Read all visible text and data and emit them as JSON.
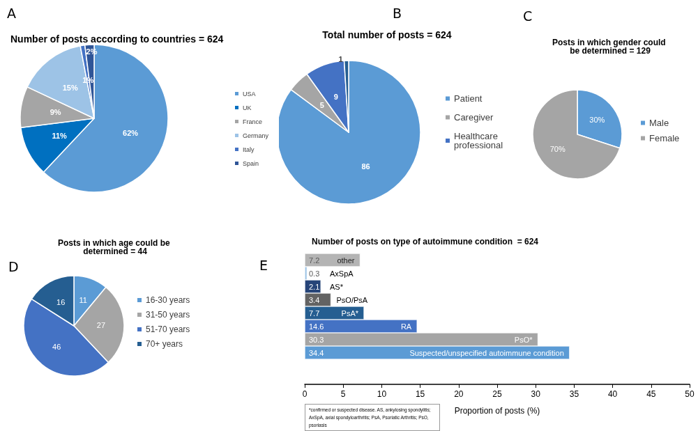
{
  "chart_data": [
    {
      "type": "pie",
      "title": "Number of posts according to countries = 624",
      "annotations": [
        "A"
      ],
      "categories": [
        "USA",
        "UK",
        "France",
        "Germany",
        "Italy",
        "Spain"
      ],
      "values": [
        62,
        11,
        9,
        15,
        1,
        2
      ],
      "value_labels": [
        "62%",
        "11%",
        "9%",
        "15%",
        "1%",
        "2%"
      ],
      "colors": [
        "#5b9bd5",
        "#0070c0",
        "#a5a5a5",
        "#9dc3e6",
        "#4472c4",
        "#2f5597"
      ],
      "legend": "right"
    },
    {
      "type": "pie",
      "title": "Total number of posts = 624",
      "annotations": [
        "B"
      ],
      "categories": [
        "Patient",
        "Caregiver",
        "Healthcare professional",
        null
      ],
      "values": [
        86,
        5,
        9,
        1
      ],
      "colors": [
        "#5b9bd5",
        "#a5a5a5",
        "#4472c4",
        "#255e91"
      ],
      "data_labels": true,
      "legend": "right"
    },
    {
      "type": "pie",
      "title": "Posts in which gender could be determined = 129",
      "annotations": [
        "C"
      ],
      "categories": [
        "Male",
        "Female"
      ],
      "values": [
        30,
        70
      ],
      "value_labels": [
        "30%",
        "70%"
      ],
      "colors": [
        "#5b9bd5",
        "#a5a5a5"
      ],
      "legend": "right"
    },
    {
      "type": "pie",
      "title": "Posts in which age could be determined = 44",
      "annotations": [
        "D"
      ],
      "categories": [
        "16-30 years",
        "31-50 years",
        "51-70 years",
        "70+ years"
      ],
      "values": [
        11,
        27,
        46,
        16
      ],
      "colors": [
        "#5b9bd5",
        "#a5a5a5",
        "#4472c4",
        "#255e91"
      ],
      "data_labels": true,
      "legend": "right"
    },
    {
      "type": "bar",
      "orientation": "horizontal",
      "title": "Number of posts on type of autoimmune condition  = 624",
      "annotations": [
        "E",
        "*confirmed or suspected disease. AS, ankylosing spondylitis; AxSpA, axial spondyloarthritis; PsA, Psoriatic Arthritis; PsO, psoriasis"
      ],
      "categories": [
        "other",
        "AxSpA",
        "AS*",
        "PsO/PsA",
        "PsA*",
        "RA",
        "PsO*",
        "Suspected/unspecified autoimmune condition"
      ],
      "values": [
        7.2,
        0.3,
        2.1,
        3.4,
        7.7,
        14.6,
        30.3,
        34.4
      ],
      "colors": [
        "#b4b4b4",
        "#9dc3e6",
        "#264478",
        "#636363",
        "#255e91",
        "#4472c4",
        "#a5a5a5",
        "#5b9bd5"
      ],
      "data_labels": true,
      "xlabel": "Proportion of posts (%)",
      "xlim": [
        0,
        50
      ],
      "xticks": [
        0,
        5,
        10,
        15,
        20,
        25,
        30,
        35,
        40,
        45,
        50
      ],
      "grid": false,
      "legend": false
    }
  ]
}
